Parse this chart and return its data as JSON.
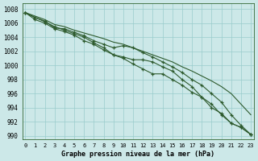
{
  "title": "Graphe pression niveau de la mer (hPa)",
  "background_color": "#cce8e8",
  "grid_color": "#99cccc",
  "line_color": "#2d5a2d",
  "xlim": [
    -0.3,
    23.3
  ],
  "ylim": [
    989.5,
    1008.8
  ],
  "yticks": [
    990,
    992,
    994,
    996,
    998,
    1000,
    1002,
    1004,
    1006,
    1008
  ],
  "xticks": [
    0,
    1,
    2,
    3,
    4,
    5,
    6,
    7,
    8,
    9,
    10,
    11,
    12,
    13,
    14,
    15,
    16,
    17,
    18,
    19,
    20,
    21,
    22,
    23
  ],
  "series_with_markers": [
    [
      1007.5,
      1006.8,
      1006.2,
      1005.5,
      1005.0,
      1004.5,
      1004.0,
      1003.2,
      1002.5,
      1001.5,
      1001.0,
      1000.2,
      999.5,
      998.8,
      998.8,
      998.0,
      997.2,
      996.2,
      995.5,
      994.0,
      993.2,
      991.8,
      991.2,
      990.2
    ],
    [
      1007.5,
      1006.5,
      1006.0,
      1005.2,
      1004.8,
      1004.3,
      1003.5,
      1003.0,
      1002.2,
      1001.5,
      1001.2,
      1000.8,
      1000.8,
      1000.5,
      999.8,
      999.2,
      998.0,
      997.0,
      995.5,
      994.5,
      993.0,
      991.8,
      991.2,
      990.2
    ],
    [
      1007.5,
      1006.8,
      1006.3,
      1005.3,
      1005.2,
      1004.7,
      1004.2,
      1003.5,
      1003.0,
      1002.5,
      1002.8,
      1002.5,
      1001.8,
      1001.2,
      1000.5,
      999.8,
      999.0,
      998.0,
      997.2,
      996.0,
      994.8,
      993.0,
      991.5,
      990.2
    ]
  ],
  "series_smooth": [
    [
      1007.5,
      1007.0,
      1006.5,
      1005.8,
      1005.5,
      1005.0,
      1004.6,
      1004.2,
      1003.8,
      1003.3,
      1003.0,
      1002.5,
      1002.0,
      1001.5,
      1001.0,
      1000.5,
      999.8,
      999.2,
      998.5,
      997.8,
      997.0,
      996.0,
      994.5,
      993.0
    ]
  ]
}
